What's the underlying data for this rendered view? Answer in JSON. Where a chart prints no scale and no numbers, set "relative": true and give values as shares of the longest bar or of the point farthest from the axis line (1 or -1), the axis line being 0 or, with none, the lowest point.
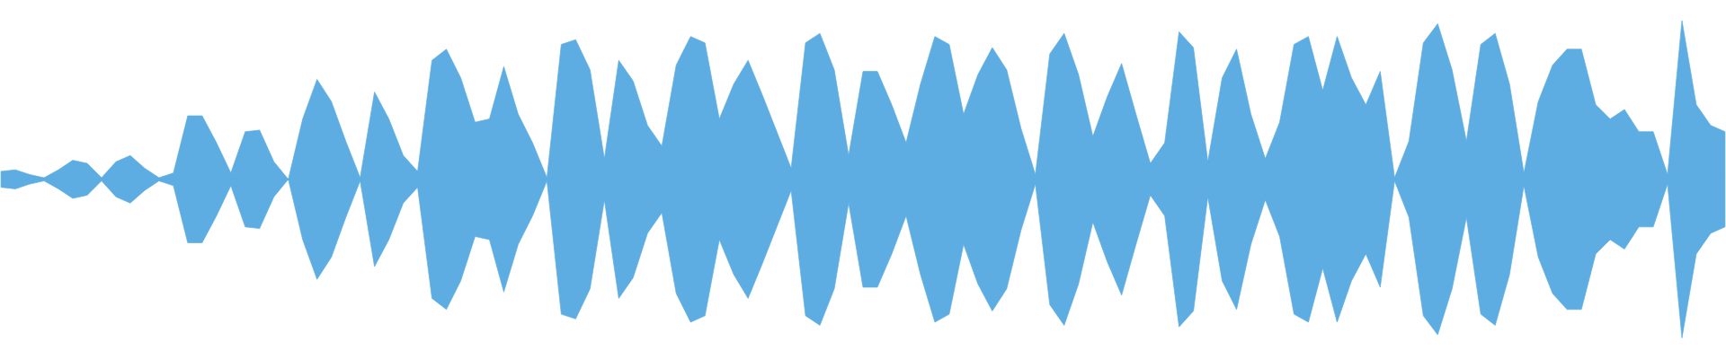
{
  "chart_data": {
    "type": "area",
    "relative": true,
    "ref_lines": [
      {
        "axis": "y",
        "value": 0,
        "color": "#5dade2"
      }
    ],
    "categories": [
      null,
      null,
      null,
      null,
      null,
      null,
      null,
      null,
      null,
      null,
      null,
      null,
      null,
      null,
      null,
      null,
      null,
      null,
      null,
      null,
      null,
      null,
      null,
      null,
      null,
      null,
      null,
      null,
      null,
      null,
      null,
      null,
      null,
      null,
      null,
      null,
      null,
      null,
      null,
      null,
      null,
      null,
      null,
      null,
      null,
      null,
      null,
      null,
      null,
      null,
      null,
      null,
      null,
      null,
      null,
      null,
      null,
      null,
      null,
      null,
      null,
      null,
      null,
      null,
      null,
      null,
      null,
      null,
      null,
      null,
      null,
      null,
      null,
      null,
      null,
      null,
      null,
      null,
      null,
      null,
      null,
      null,
      null,
      null,
      null,
      null,
      null,
      null,
      null,
      null,
      null,
      null,
      null,
      null,
      null,
      null,
      null,
      null,
      null,
      null,
      null,
      null,
      null,
      null,
      null,
      null,
      null,
      null,
      null,
      null,
      null,
      null,
      null,
      null,
      null,
      null,
      null,
      null,
      null,
      null,
      null
    ],
    "series": [
      {
        "color": "#5dade2",
        "values": [
          0.05,
          0.06,
          0.03,
          0.01,
          0.06,
          0.12,
          0.1,
          0.01,
          0.11,
          0.15,
          0.07,
          0.01,
          0.04,
          0.4,
          0.4,
          0.23,
          0.04,
          0.3,
          0.31,
          0.11,
          0.0,
          0.38,
          0.63,
          0.49,
          0.24,
          0.01,
          0.55,
          0.38,
          0.15,
          0.05,
          0.75,
          0.82,
          0.64,
          0.36,
          0.38,
          0.71,
          0.41,
          0.23,
          0.01,
          0.85,
          0.88,
          0.69,
          0.13,
          0.75,
          0.62,
          0.34,
          0.21,
          0.72,
          0.9,
          0.86,
          0.38,
          0.6,
          0.75,
          0.53,
          0.3,
          0.07,
          0.86,
          0.92,
          0.69,
          0.15,
          0.68,
          0.68,
          0.47,
          0.23,
          0.6,
          0.9,
          0.85,
          0.41,
          0.66,
          0.83,
          0.69,
          0.32,
          0.03,
          0.79,
          0.92,
          0.66,
          0.27,
          0.52,
          0.73,
          0.41,
          0.1,
          0.23,
          0.93,
          0.83,
          0.11,
          0.64,
          0.82,
          0.41,
          0.13,
          0.36,
          0.85,
          0.9,
          0.56,
          0.9,
          0.64,
          0.47,
          0.68,
          0.01,
          0.24,
          0.86,
          0.98,
          0.69,
          0.24,
          0.85,
          0.92,
          0.6,
          0.04,
          0.49,
          0.72,
          0.82,
          0.82,
          0.47,
          0.38,
          0.44,
          0.3,
          0.3,
          0.03,
          1.0,
          0.47,
          0.34,
          0.3
        ]
      },
      {
        "color": "#5dade2",
        "values": [
          -0.05,
          -0.06,
          -0.03,
          -0.01,
          -0.06,
          -0.12,
          -0.1,
          -0.01,
          -0.11,
          -0.15,
          -0.07,
          -0.01,
          -0.04,
          -0.4,
          -0.4,
          -0.23,
          -0.04,
          -0.3,
          -0.31,
          -0.11,
          0.0,
          -0.38,
          -0.63,
          -0.49,
          -0.24,
          -0.01,
          -0.55,
          -0.38,
          -0.15,
          -0.05,
          -0.75,
          -0.82,
          -0.64,
          -0.36,
          -0.38,
          -0.71,
          -0.41,
          -0.23,
          -0.01,
          -0.85,
          -0.88,
          -0.69,
          -0.13,
          -0.75,
          -0.62,
          -0.34,
          -0.21,
          -0.72,
          -0.9,
          -0.86,
          -0.38,
          -0.6,
          -0.75,
          -0.53,
          -0.3,
          -0.07,
          -0.86,
          -0.92,
          -0.69,
          -0.15,
          -0.68,
          -0.68,
          -0.47,
          -0.23,
          -0.6,
          -0.9,
          -0.85,
          -0.41,
          -0.66,
          -0.83,
          -0.69,
          -0.32,
          -0.03,
          -0.79,
          -0.92,
          -0.66,
          -0.27,
          -0.52,
          -0.73,
          -0.41,
          -0.1,
          -0.23,
          -0.93,
          -0.83,
          -0.11,
          -0.64,
          -0.82,
          -0.41,
          -0.13,
          -0.36,
          -0.85,
          -0.9,
          -0.56,
          -0.9,
          -0.64,
          -0.47,
          -0.68,
          -0.01,
          -0.24,
          -0.86,
          -0.98,
          -0.69,
          -0.24,
          -0.85,
          -0.92,
          -0.6,
          -0.04,
          -0.49,
          -0.72,
          -0.82,
          -0.82,
          -0.47,
          -0.38,
          -0.44,
          -0.3,
          -0.3,
          -0.03,
          -1.0,
          -0.47,
          -0.34,
          -0.3
        ]
      }
    ]
  }
}
